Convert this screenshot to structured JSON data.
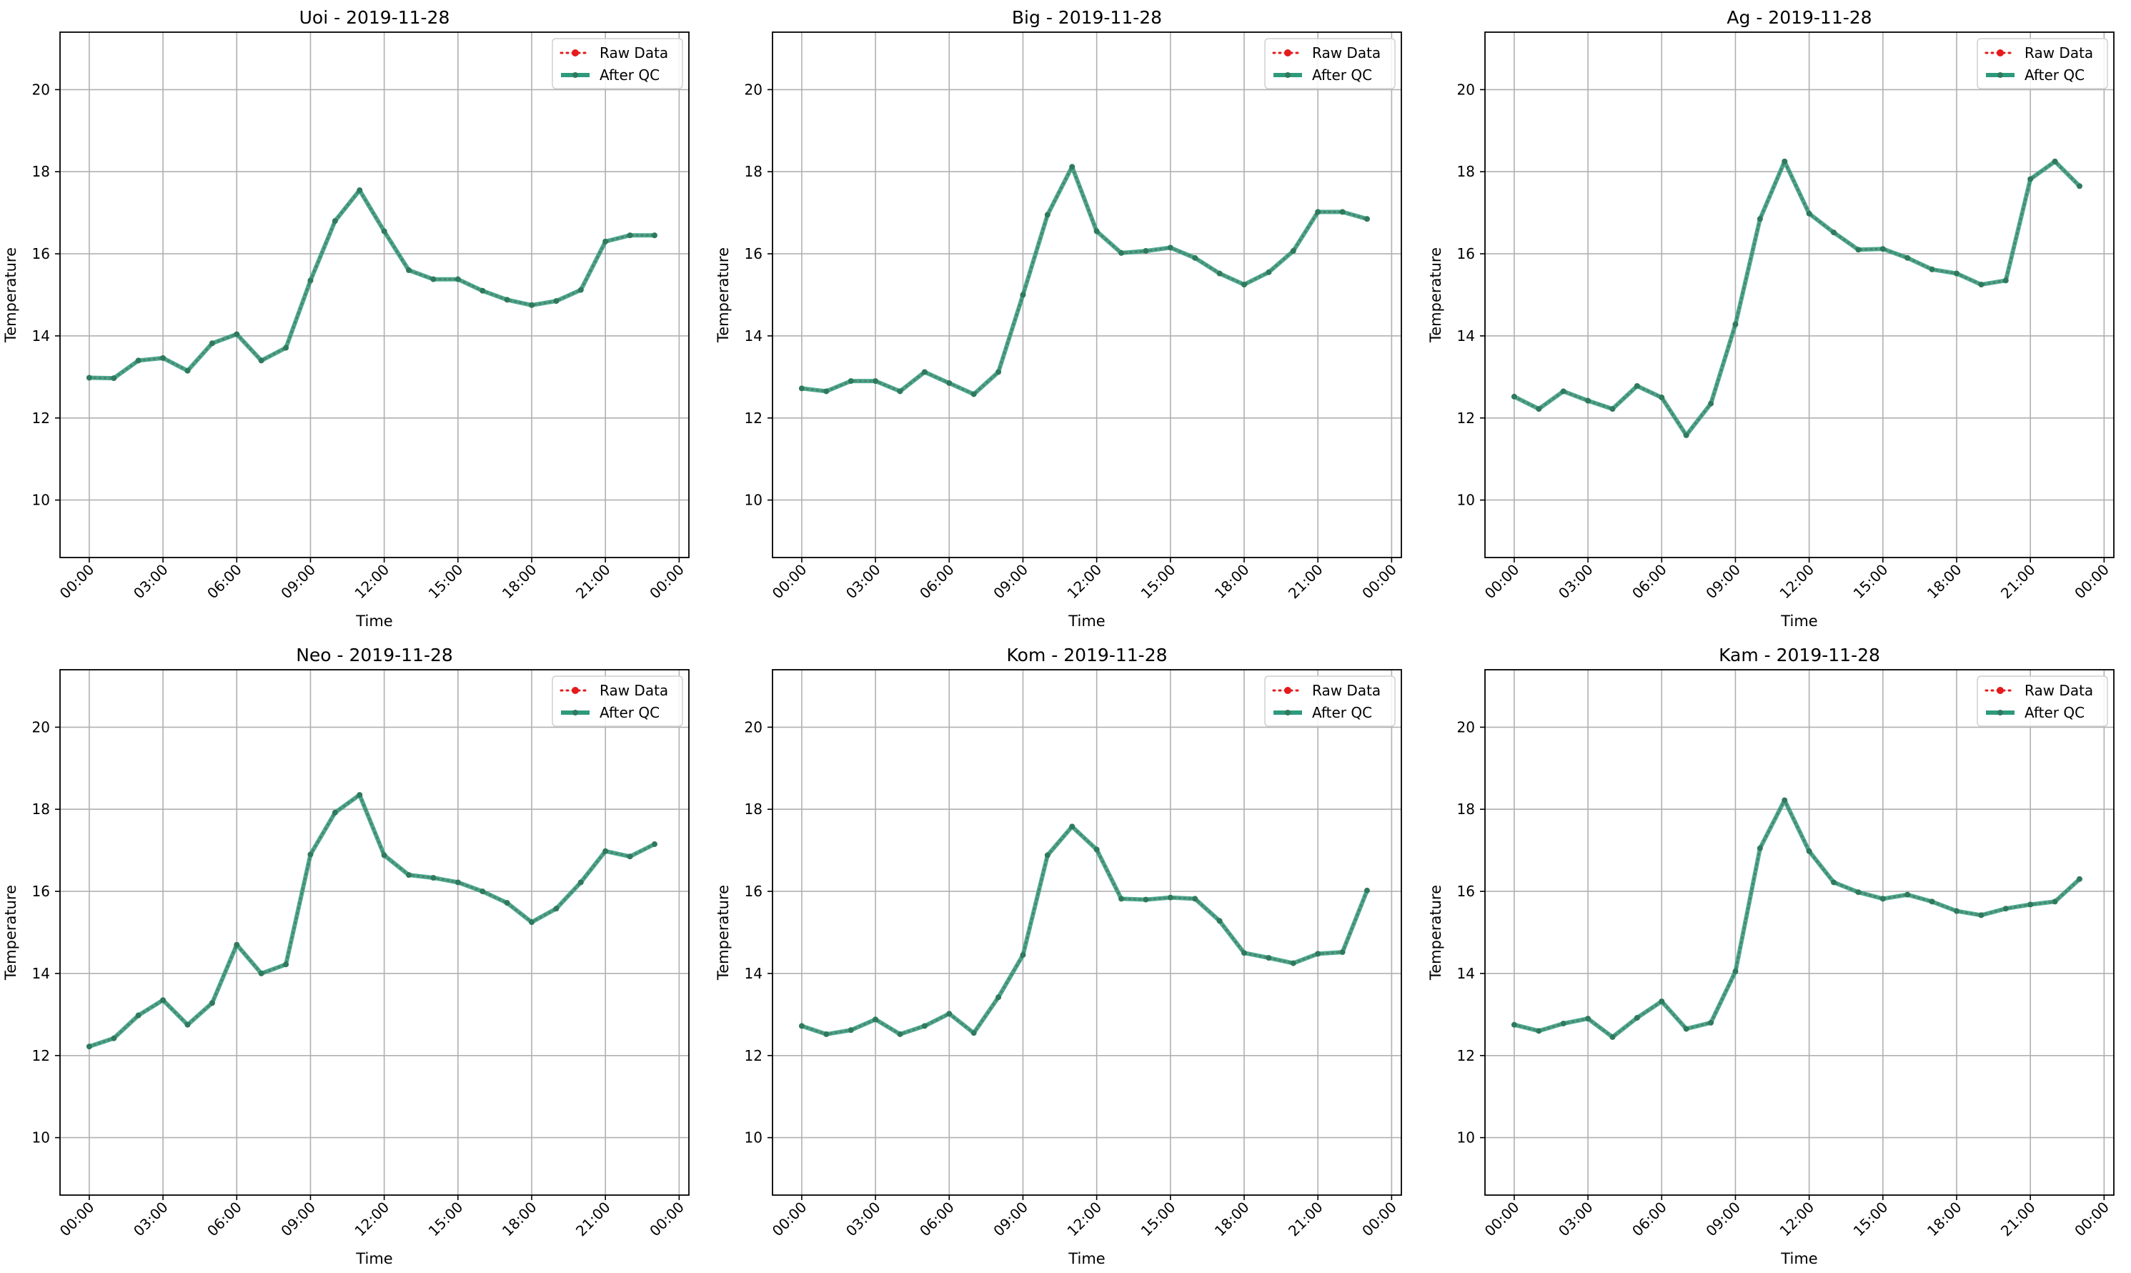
{
  "legend": {
    "raw_label": "Raw Data",
    "qc_label": "After QC"
  },
  "colors": {
    "raw": "#e41a1c",
    "qc": "#2e9a7c",
    "marker": "#2f7a5c",
    "grid": "#b0b0b0"
  },
  "chart_data": [
    {
      "type": "line",
      "title": "Uoi - 2019-11-28",
      "xlabel": "Time",
      "ylabel": "Temperature",
      "x": [
        "00:00",
        "01:00",
        "02:00",
        "03:00",
        "04:00",
        "05:00",
        "06:00",
        "07:00",
        "08:00",
        "09:00",
        "10:00",
        "11:00",
        "12:00",
        "13:00",
        "14:00",
        "15:00",
        "16:00",
        "17:00",
        "18:00",
        "19:00",
        "20:00",
        "21:00",
        "22:00",
        "23:00"
      ],
      "xticks": [
        "00:00",
        "03:00",
        "06:00",
        "09:00",
        "12:00",
        "15:00",
        "18:00",
        "21:00",
        "00:00"
      ],
      "yticks": [
        10,
        12,
        14,
        16,
        18,
        20
      ],
      "ylim": [
        8.6,
        21.4
      ],
      "grid": true,
      "legend_position": "top-right",
      "series": [
        {
          "name": "Raw Data",
          "values": [
            12.98,
            12.97,
            13.4,
            13.46,
            13.15,
            13.82,
            14.04,
            13.4,
            13.71,
            15.35,
            16.8,
            17.55,
            16.55,
            15.6,
            15.38,
            15.38,
            15.1,
            14.88,
            14.75,
            14.85,
            15.12,
            16.3,
            16.45,
            16.45
          ]
        },
        {
          "name": "After QC",
          "values": [
            12.98,
            12.97,
            13.4,
            13.46,
            13.15,
            13.82,
            14.04,
            13.4,
            13.71,
            15.35,
            16.8,
            17.55,
            16.55,
            15.6,
            15.38,
            15.38,
            15.1,
            14.88,
            14.75,
            14.85,
            15.12,
            16.3,
            16.45,
            16.45
          ]
        }
      ]
    },
    {
      "type": "line",
      "title": "Big - 2019-11-28",
      "xlabel": "Time",
      "ylabel": "Temperature",
      "x": [
        "00:00",
        "01:00",
        "02:00",
        "03:00",
        "04:00",
        "05:00",
        "06:00",
        "07:00",
        "08:00",
        "09:00",
        "10:00",
        "11:00",
        "12:00",
        "13:00",
        "14:00",
        "15:00",
        "16:00",
        "17:00",
        "18:00",
        "19:00",
        "20:00",
        "21:00",
        "22:00",
        "23:00"
      ],
      "xticks": [
        "00:00",
        "03:00",
        "06:00",
        "09:00",
        "12:00",
        "15:00",
        "18:00",
        "21:00",
        "00:00"
      ],
      "yticks": [
        10,
        12,
        14,
        16,
        18,
        20
      ],
      "ylim": [
        8.6,
        21.4
      ],
      "grid": true,
      "legend_position": "top-right",
      "series": [
        {
          "name": "Raw Data",
          "values": [
            12.72,
            12.65,
            12.9,
            12.9,
            12.65,
            13.12,
            12.85,
            12.58,
            13.12,
            15.0,
            16.95,
            18.12,
            16.55,
            16.02,
            16.07,
            16.15,
            15.9,
            15.52,
            15.25,
            15.55,
            16.07,
            17.02,
            17.02,
            16.85
          ]
        },
        {
          "name": "After QC",
          "values": [
            12.72,
            12.65,
            12.9,
            12.9,
            12.65,
            13.12,
            12.85,
            12.58,
            13.12,
            15.0,
            16.95,
            18.12,
            16.55,
            16.02,
            16.07,
            16.15,
            15.9,
            15.52,
            15.25,
            15.55,
            16.07,
            17.02,
            17.02,
            16.85
          ]
        }
      ]
    },
    {
      "type": "line",
      "title": "Ag - 2019-11-28",
      "xlabel": "Time",
      "ylabel": "Temperature",
      "x": [
        "00:00",
        "01:00",
        "02:00",
        "03:00",
        "04:00",
        "05:00",
        "06:00",
        "07:00",
        "08:00",
        "09:00",
        "10:00",
        "11:00",
        "12:00",
        "13:00",
        "14:00",
        "15:00",
        "16:00",
        "17:00",
        "18:00",
        "19:00",
        "20:00",
        "21:00",
        "22:00",
        "23:00"
      ],
      "xticks": [
        "00:00",
        "03:00",
        "06:00",
        "09:00",
        "12:00",
        "15:00",
        "18:00",
        "21:00",
        "00:00"
      ],
      "yticks": [
        10,
        12,
        14,
        16,
        18,
        20
      ],
      "ylim": [
        8.6,
        21.4
      ],
      "grid": true,
      "legend_position": "top-right",
      "series": [
        {
          "name": "Raw Data",
          "values": [
            12.52,
            12.22,
            12.65,
            12.42,
            12.22,
            12.78,
            12.5,
            11.58,
            12.35,
            14.28,
            16.85,
            18.25,
            16.98,
            16.52,
            16.1,
            16.12,
            15.9,
            15.62,
            15.52,
            15.25,
            15.35,
            17.82,
            18.25,
            17.65
          ]
        },
        {
          "name": "After QC",
          "values": [
            12.52,
            12.22,
            12.65,
            12.42,
            12.22,
            12.78,
            12.5,
            11.58,
            12.35,
            14.28,
            16.85,
            18.25,
            16.98,
            16.52,
            16.1,
            16.12,
            15.9,
            15.62,
            15.52,
            15.25,
            15.35,
            17.82,
            18.25,
            17.65
          ]
        }
      ]
    },
    {
      "type": "line",
      "title": "Neo - 2019-11-28",
      "xlabel": "Time",
      "ylabel": "Temperature",
      "x": [
        "00:00",
        "01:00",
        "02:00",
        "03:00",
        "04:00",
        "05:00",
        "06:00",
        "07:00",
        "08:00",
        "09:00",
        "10:00",
        "11:00",
        "12:00",
        "13:00",
        "14:00",
        "15:00",
        "16:00",
        "17:00",
        "18:00",
        "19:00",
        "20:00",
        "21:00",
        "22:00",
        "23:00"
      ],
      "xticks": [
        "00:00",
        "03:00",
        "06:00",
        "09:00",
        "12:00",
        "15:00",
        "18:00",
        "21:00",
        "00:00"
      ],
      "yticks": [
        10,
        12,
        14,
        16,
        18,
        20
      ],
      "ylim": [
        8.6,
        21.4
      ],
      "grid": true,
      "legend_position": "top-right",
      "series": [
        {
          "name": "Raw Data",
          "values": [
            12.22,
            12.42,
            12.98,
            13.35,
            12.75,
            13.28,
            14.7,
            14.0,
            14.22,
            16.9,
            17.92,
            18.35,
            16.88,
            16.4,
            16.33,
            16.22,
            16.0,
            15.72,
            15.25,
            15.58,
            16.22,
            16.98,
            16.85,
            17.15
          ]
        },
        {
          "name": "After QC",
          "values": [
            12.22,
            12.42,
            12.98,
            13.35,
            12.75,
            13.28,
            14.7,
            14.0,
            14.22,
            16.9,
            17.92,
            18.35,
            16.88,
            16.4,
            16.33,
            16.22,
            16.0,
            15.72,
            15.25,
            15.58,
            16.22,
            16.98,
            16.85,
            17.15
          ]
        }
      ]
    },
    {
      "type": "line",
      "title": "Kom - 2019-11-28",
      "xlabel": "Time",
      "ylabel": "Temperature",
      "x": [
        "00:00",
        "01:00",
        "02:00",
        "03:00",
        "04:00",
        "05:00",
        "06:00",
        "07:00",
        "08:00",
        "09:00",
        "10:00",
        "11:00",
        "12:00",
        "13:00",
        "14:00",
        "15:00",
        "16:00",
        "17:00",
        "18:00",
        "19:00",
        "20:00",
        "21:00",
        "22:00",
        "23:00"
      ],
      "xticks": [
        "00:00",
        "03:00",
        "06:00",
        "09:00",
        "12:00",
        "15:00",
        "18:00",
        "21:00",
        "00:00"
      ],
      "yticks": [
        10,
        12,
        14,
        16,
        18,
        20
      ],
      "ylim": [
        8.6,
        21.4
      ],
      "grid": true,
      "legend_position": "top-right",
      "series": [
        {
          "name": "Raw Data",
          "values": [
            12.72,
            12.52,
            12.62,
            12.88,
            12.52,
            12.72,
            13.02,
            12.55,
            13.42,
            14.45,
            16.88,
            17.58,
            17.02,
            15.82,
            15.8,
            15.85,
            15.82,
            15.28,
            14.5,
            14.38,
            14.25,
            14.48,
            14.52,
            16.02
          ]
        },
        {
          "name": "After QC",
          "values": [
            12.72,
            12.52,
            12.62,
            12.88,
            12.52,
            12.72,
            13.02,
            12.55,
            13.42,
            14.45,
            16.88,
            17.58,
            17.02,
            15.82,
            15.8,
            15.85,
            15.82,
            15.28,
            14.5,
            14.38,
            14.25,
            14.48,
            14.52,
            16.02
          ]
        }
      ]
    },
    {
      "type": "line",
      "title": "Kam - 2019-11-28",
      "xlabel": "Time",
      "ylabel": "Temperature",
      "x": [
        "00:00",
        "01:00",
        "02:00",
        "03:00",
        "04:00",
        "05:00",
        "06:00",
        "07:00",
        "08:00",
        "09:00",
        "10:00",
        "11:00",
        "12:00",
        "13:00",
        "14:00",
        "15:00",
        "16:00",
        "17:00",
        "18:00",
        "19:00",
        "20:00",
        "21:00",
        "22:00",
        "23:00"
      ],
      "xticks": [
        "00:00",
        "03:00",
        "06:00",
        "09:00",
        "12:00",
        "15:00",
        "18:00",
        "21:00",
        "00:00"
      ],
      "yticks": [
        10,
        12,
        14,
        16,
        18,
        20
      ],
      "ylim": [
        8.6,
        21.4
      ],
      "grid": true,
      "legend_position": "top-right",
      "series": [
        {
          "name": "Raw Data",
          "values": [
            12.75,
            12.6,
            12.78,
            12.9,
            12.45,
            12.92,
            13.32,
            12.65,
            12.8,
            14.05,
            17.05,
            18.22,
            16.98,
            16.22,
            15.98,
            15.82,
            15.92,
            15.75,
            15.52,
            15.42,
            15.58,
            15.68,
            15.75,
            16.3
          ]
        },
        {
          "name": "After QC",
          "values": [
            12.75,
            12.6,
            12.78,
            12.9,
            12.45,
            12.92,
            13.32,
            12.65,
            12.8,
            14.05,
            17.05,
            18.22,
            16.98,
            16.22,
            15.98,
            15.82,
            15.92,
            15.75,
            15.52,
            15.42,
            15.58,
            15.68,
            15.75,
            16.3
          ]
        }
      ]
    }
  ]
}
